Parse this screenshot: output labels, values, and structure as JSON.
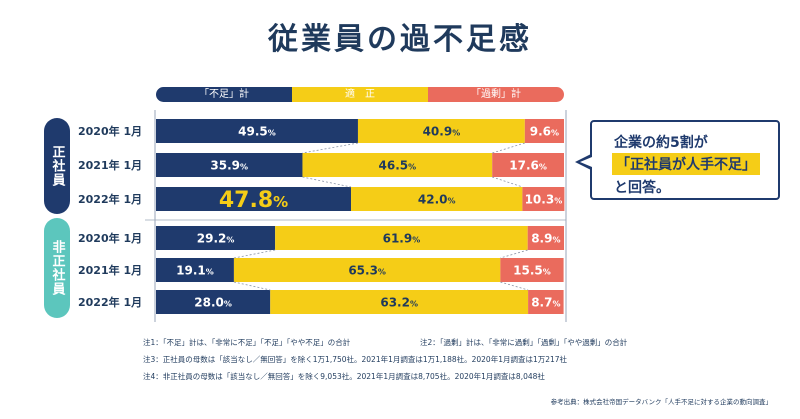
{
  "title": "従業員の過不足感",
  "legend": {
    "shortage": "「不足」計",
    "adequate": "適　正",
    "excess": "「過剰」計"
  },
  "groups": [
    {
      "label": "正社員"
    },
    {
      "label": "非正社員"
    }
  ],
  "callout": {
    "line1": "企業の約5割が",
    "highlight": "「正社員が人手不足」",
    "line3": "と回答。"
  },
  "notes": {
    "note1": "注1：「不足」計は、「非常に不足」「不足」「やや不足」の合計",
    "note2": "注2：「過剰」計は、「非常に過剰」「過剰」「やや過剰」の合計",
    "note3": "注3：正社員の母数は「該当なし／無回答」を除く1万1,750社。2021年1月調査は1万1,188社。2020年1月調査は1万217社",
    "note4": "注4：非正社員の母数は「該当なし／無回答」を除く9,053社。2021年1月調査は8,705社。2020年1月調査は8,048社"
  },
  "source": "参考出典：株式会社帝国データバンク「人手不足に対する企業の動向調査」",
  "colors": {
    "shortage": "#1f3a6d",
    "adequate": "#f5cd17",
    "excess": "#ea6b5d",
    "highlight_text": "#f5cd17"
  },
  "chart_data": {
    "type": "bar",
    "stacked": true,
    "orientation": "horizontal",
    "unit": "%",
    "categories": [
      "2020年 1月",
      "2021年 1月",
      "2022年 1月",
      "2020年 1月",
      "2021年 1月",
      "2022年 1月"
    ],
    "category_groups": [
      "正社員",
      "正社員",
      "正社員",
      "非正社員",
      "非正社員",
      "非正社員"
    ],
    "series": [
      {
        "name": "「不足」計",
        "values": [
          49.5,
          35.9,
          47.8,
          29.2,
          19.1,
          28.0
        ]
      },
      {
        "name": "適　正",
        "values": [
          40.9,
          46.5,
          42.0,
          61.9,
          65.3,
          63.2
        ]
      },
      {
        "name": "「過剰」計",
        "values": [
          9.6,
          17.6,
          10.3,
          8.9,
          15.5,
          8.7
        ]
      }
    ],
    "xlim": [
      0,
      100
    ],
    "highlighted": {
      "category_index": 2,
      "series": "「不足」計"
    }
  }
}
